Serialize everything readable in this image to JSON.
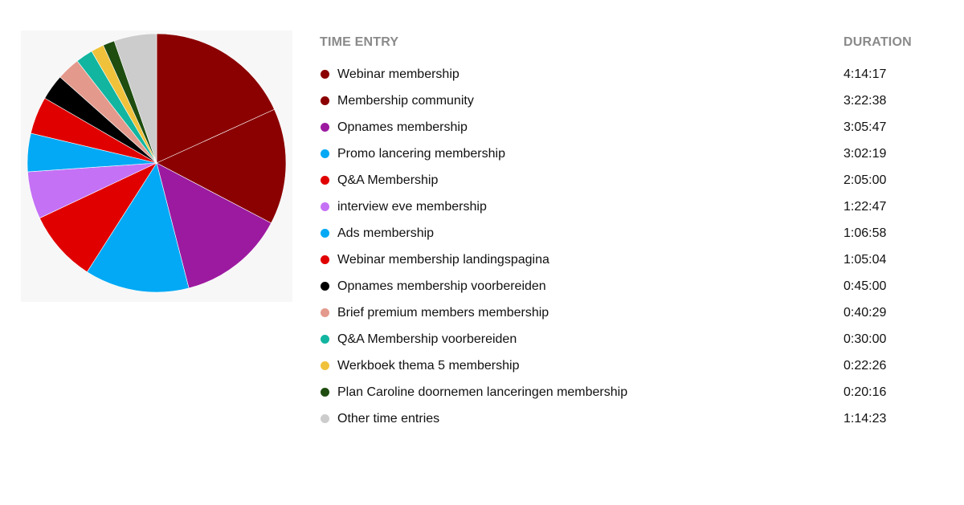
{
  "header": {
    "entry_label": "TIME ENTRY",
    "duration_label": "DURATION"
  },
  "entries": [
    {
      "label": "Webinar membership",
      "duration": "4:14:17",
      "color": "#8b0000"
    },
    {
      "label": "Membership community",
      "duration": "3:22:38",
      "color": "#8b0000"
    },
    {
      "label": "Opnames membership",
      "duration": "3:05:47",
      "color": "#9c1aa0"
    },
    {
      "label": "Promo lancering membership",
      "duration": "3:02:19",
      "color": "#03a9f4"
    },
    {
      "label": "Q&A Membership",
      "duration": "2:05:00",
      "color": "#e00000"
    },
    {
      "label": "interview eve membership",
      "duration": "1:22:47",
      "color": "#c471f5"
    },
    {
      "label": "Ads membership",
      "duration": "1:06:58",
      "color": "#03a9f4"
    },
    {
      "label": "Webinar membership landingspagina",
      "duration": "1:05:04",
      "color": "#e00000"
    },
    {
      "label": "Opnames membership voorbereiden",
      "duration": "0:45:00",
      "color": "#000000"
    },
    {
      "label": "Brief premium members membership",
      "duration": "0:40:29",
      "color": "#e39a8c"
    },
    {
      "label": "Q&A Membership voorbereiden",
      "duration": "0:30:00",
      "color": "#12b5a0"
    },
    {
      "label": "Werkboek thema 5 membership",
      "duration": "0:22:26",
      "color": "#f0c23b"
    },
    {
      "label": "Plan Caroline doornemen lanceringen membership",
      "duration": "0:20:16",
      "color": "#1e4d0f"
    },
    {
      "label": "Other time entries",
      "duration": "1:14:23",
      "color": "#cccccc"
    }
  ],
  "chart_data": {
    "type": "pie",
    "categories": [
      "Webinar membership",
      "Membership community",
      "Opnames membership",
      "Promo lancering membership",
      "Q&A Membership",
      "interview eve membership",
      "Ads membership",
      "Webinar membership landingspagina",
      "Opnames membership voorbereiden",
      "Brief premium members membership",
      "Q&A Membership voorbereiden",
      "Werkboek thema 5 membership",
      "Plan Caroline doornemen lanceringen membership",
      "Other time entries"
    ],
    "durations": [
      "4:14:17",
      "3:22:38",
      "3:05:47",
      "3:02:19",
      "2:05:00",
      "1:22:47",
      "1:06:58",
      "1:05:04",
      "0:45:00",
      "0:40:29",
      "0:30:00",
      "0:22:26",
      "0:20:16",
      "1:14:23"
    ],
    "values_seconds": [
      15257,
      12158,
      11147,
      10939,
      7500,
      4967,
      4018,
      3904,
      2700,
      2429,
      1800,
      1346,
      1216,
      4463
    ],
    "colors": [
      "#8b0000",
      "#8b0000",
      "#9c1aa0",
      "#03a9f4",
      "#e00000",
      "#c471f5",
      "#03a9f4",
      "#e00000",
      "#000000",
      "#e39a8c",
      "#12b5a0",
      "#f0c23b",
      "#1e4d0f",
      "#cccccc"
    ],
    "start": "12 o'clock",
    "direction": "clockwise",
    "legend": "right"
  }
}
